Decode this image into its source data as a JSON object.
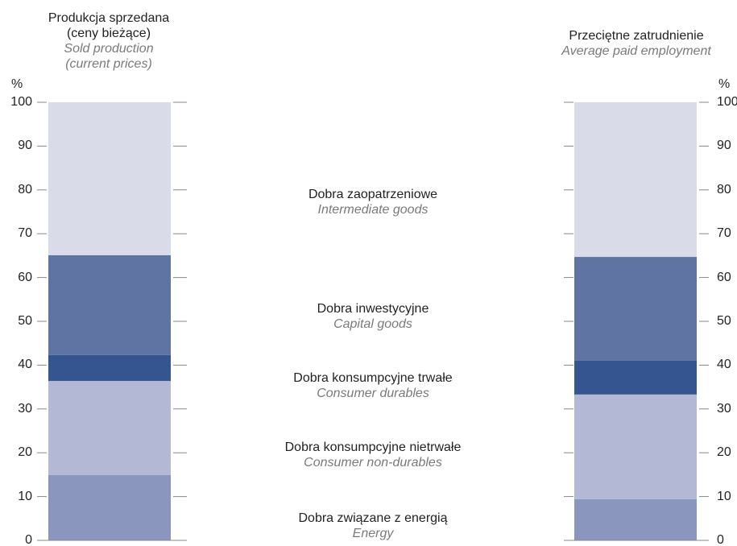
{
  "chart_data": {
    "type": "stacked_bar",
    "categories": [
      "Produkcja sprzedana (ceny bieżące)",
      "Przeciętne zatrudnienie"
    ],
    "category_subtitles": [
      "Sold production (current prices)",
      "Average paid employment"
    ],
    "y_unit": "%",
    "ylim": [
      0,
      100
    ],
    "yticks": [
      0,
      10,
      20,
      30,
      40,
      50,
      60,
      70,
      80,
      90,
      100
    ],
    "series": [
      {
        "name": "Dobra związane z energią",
        "name_en": "Energy",
        "color": "#8a96bd",
        "values": [
          14.9,
          9.4
        ]
      },
      {
        "name": "Dobra konsumpcyjne nietrwałe",
        "name_en": "Consumer non-durables",
        "color": "#b3b8d4",
        "values": [
          21.5,
          23.9
        ]
      },
      {
        "name": "Dobra konsumpcyjne trwałe",
        "name_en": "Consumer durables",
        "color": "#34558f",
        "values": [
          5.9,
          7.7
        ]
      },
      {
        "name": "Dobra inwestycyjne",
        "name_en": "Capital goods",
        "color": "#6074a4",
        "values": [
          22.8,
          23.7
        ]
      },
      {
        "name": "Dobra zaopatrzeniowe",
        "name_en": "Intermediate goods",
        "color": "#d9dbe8",
        "values": [
          34.9,
          35.3
        ]
      }
    ]
  }
}
